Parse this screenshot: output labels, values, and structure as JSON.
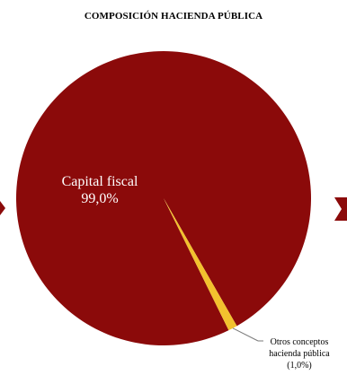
{
  "chart_data": {
    "type": "pie",
    "title": "COMPOSICIÓN HACIENDA PÚBLICA",
    "slices": [
      {
        "label": "Capital fiscal",
        "percent_text": "99,0%",
        "value": 99.0,
        "color": "#8B0A0A"
      },
      {
        "label_lines": [
          "Otros conceptos",
          "hacienda pública"
        ],
        "percent_text": "(1,0%)",
        "value": 1.0,
        "color": "#F2C12E"
      }
    ],
    "legend": "none",
    "side_arrow_color": "#8B0A0A"
  }
}
